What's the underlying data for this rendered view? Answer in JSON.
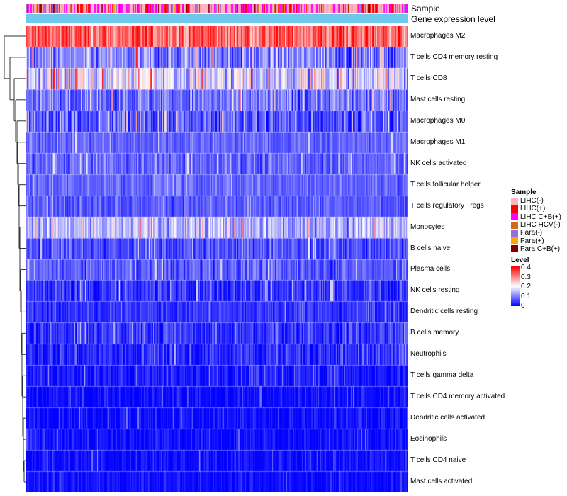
{
  "chart_data": {
    "type": "heatmap",
    "title": "",
    "annotation_tracks": [
      "Sample",
      "Gene expression level"
    ],
    "rows": [
      {
        "name": "Macrophages M2",
        "mean": 0.32,
        "spread": 0.07
      },
      {
        "name": "T cells CD4 memory resting",
        "mean": 0.1,
        "spread": 0.07
      },
      {
        "name": "T cells CD8",
        "mean": 0.17,
        "spread": 0.08
      },
      {
        "name": "Mast cells resting",
        "mean": 0.09,
        "spread": 0.06
      },
      {
        "name": "Macrophages M0",
        "mean": 0.07,
        "spread": 0.07
      },
      {
        "name": "Macrophages M1",
        "mean": 0.08,
        "spread": 0.03
      },
      {
        "name": "NK cells activated",
        "mean": 0.08,
        "spread": 0.04
      },
      {
        "name": "T cells follicular helper",
        "mean": 0.08,
        "spread": 0.03
      },
      {
        "name": "T cells regulatory  Tregs",
        "mean": 0.07,
        "spread": 0.03
      },
      {
        "name": "Monocytes",
        "mean": 0.14,
        "spread": 0.06
      },
      {
        "name": "B cells naive",
        "mean": 0.06,
        "spread": 0.04
      },
      {
        "name": "Plasma cells",
        "mean": 0.07,
        "spread": 0.04
      },
      {
        "name": "NK cells resting",
        "mean": 0.04,
        "spread": 0.05
      },
      {
        "name": "Dendritic cells resting",
        "mean": 0.04,
        "spread": 0.03
      },
      {
        "name": "B cells memory",
        "mean": 0.04,
        "spread": 0.04
      },
      {
        "name": "Neutrophils",
        "mean": 0.03,
        "spread": 0.04
      },
      {
        "name": "T cells gamma delta",
        "mean": 0.02,
        "spread": 0.03
      },
      {
        "name": "T cells CD4 memory activated",
        "mean": 0.01,
        "spread": 0.03
      },
      {
        "name": "Dendritic cells activated",
        "mean": 0.01,
        "spread": 0.03
      },
      {
        "name": "Eosinophils",
        "mean": 0.01,
        "spread": 0.03
      },
      {
        "name": "T cells CD4 naive",
        "mean": 0.01,
        "spread": 0.03
      },
      {
        "name": "Mast cells activated",
        "mean": 0.01,
        "spread": 0.02
      }
    ],
    "n_samples": 420,
    "color_scale": {
      "min": 0,
      "max": 0.4,
      "mid": 0.2,
      "low": "#0000ff",
      "midcolor": "#ffffff",
      "high": "#ff0000"
    },
    "legend": {
      "sample_title": "Sample",
      "sample_groups": [
        {
          "label": "LIHC(-)",
          "color": "#ffb6c1"
        },
        {
          "label": "LIHC(+)",
          "color": "#ff0000"
        },
        {
          "label": "LIHC C+B(+)",
          "color": "#ff00ff"
        },
        {
          "label": "LIHC HCV(-)",
          "color": "#d2691e"
        },
        {
          "label": "Para(-)",
          "color": "#9370db"
        },
        {
          "label": "Para(+)",
          "color": "#ffa500"
        },
        {
          "label": "Para C+B(+)",
          "color": "#800000"
        }
      ],
      "sample_weights": [
        0.45,
        0.16,
        0.24,
        0.03,
        0.06,
        0.03,
        0.03
      ],
      "level_title": "Level",
      "level_ticks": [
        "0.4",
        "0.3",
        "0.2",
        "0.1",
        "0"
      ],
      "expression_bar_color": "#6ec8ec"
    }
  }
}
